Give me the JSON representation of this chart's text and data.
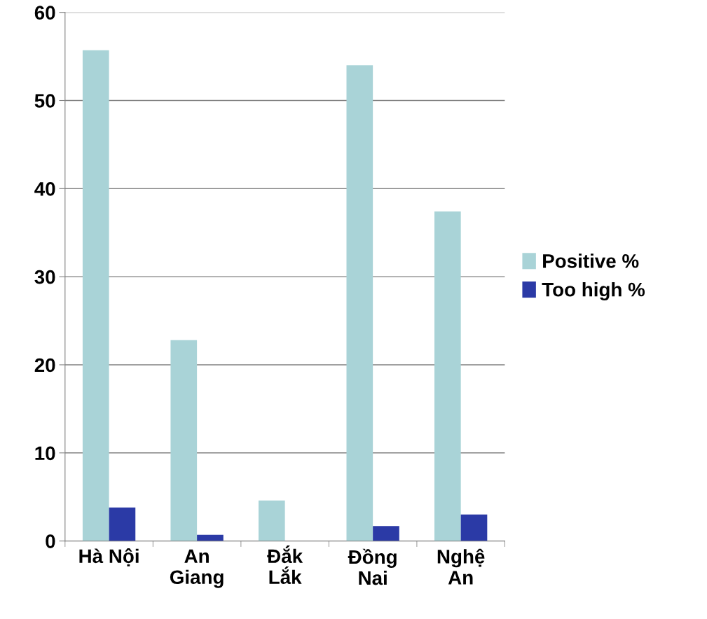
{
  "chart_data": {
    "type": "bar",
    "categories": [
      "Hà Nội",
      "An\nGiang",
      "Đắk\nLắk",
      "Đồng\nNai",
      "Nghệ\nAn"
    ],
    "series": [
      {
        "name": "Positive %",
        "color": "#a9d3d7",
        "values": [
          55.7,
          22.8,
          4.6,
          54.0,
          37.4
        ]
      },
      {
        "name": "Too high %",
        "color": "#2b3aa6",
        "values": [
          3.8,
          0.7,
          null,
          1.7,
          3.0
        ]
      }
    ],
    "ylim": [
      0,
      60
    ],
    "yticks": [
      0,
      10,
      20,
      30,
      40,
      50,
      60
    ],
    "grid": "y",
    "legend": "right"
  }
}
